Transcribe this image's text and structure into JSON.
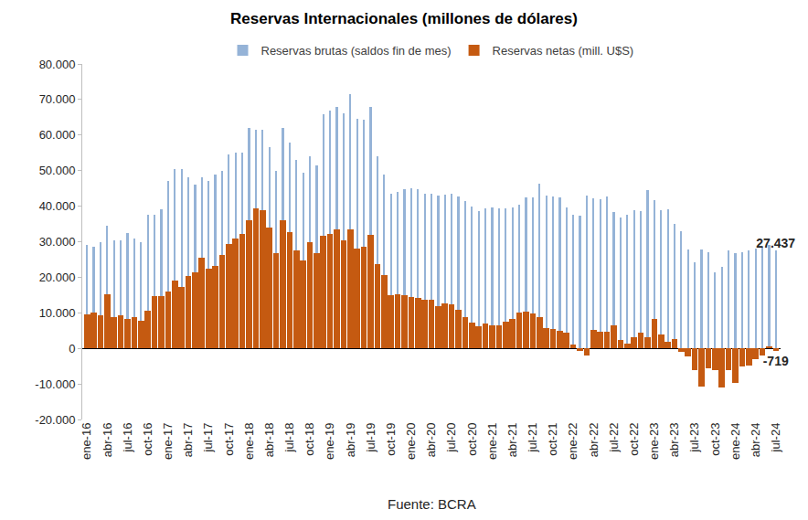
{
  "chart_data": {
    "type": "bar",
    "title": "Reservas Internacionales (millones de dólares)",
    "source": "Fuente: BCRA",
    "categories": [
      "ene-16",
      null,
      null,
      "abr-16",
      null,
      null,
      "jul-16",
      null,
      null,
      "oct-16",
      null,
      null,
      "ene-17",
      null,
      null,
      "abr-17",
      null,
      null,
      "jul-17",
      null,
      null,
      "oct-17",
      null,
      null,
      "ene-18",
      null,
      null,
      "abr-18",
      null,
      null,
      "jul-18",
      null,
      null,
      "oct-18",
      null,
      null,
      "ene-19",
      null,
      null,
      "abr-19",
      null,
      null,
      "jul-19",
      null,
      null,
      "oct-19",
      null,
      null,
      "ene-20",
      null,
      null,
      "abr-20",
      null,
      null,
      "jul-20",
      null,
      null,
      "oct-20",
      null,
      null,
      "ene-21",
      null,
      null,
      "abr-21",
      null,
      null,
      "jul-21",
      null,
      null,
      "oct-21",
      null,
      null,
      "ene-22",
      null,
      null,
      "abr-22",
      null,
      null,
      "jul-22",
      null,
      null,
      "oct-22",
      null,
      null,
      "ene-23",
      null,
      null,
      "abr-23",
      null,
      null,
      "jul-23",
      null,
      null,
      "oct-23",
      null,
      null,
      "ene-24",
      null,
      null,
      "abr-24",
      null,
      null,
      "jul-24"
    ],
    "series": [
      {
        "name": "Reservas brutas (saldos fin de mes)",
        "color": "#95b3d7",
        "values": [
          29000,
          28500,
          30000,
          34500,
          30500,
          30500,
          32500,
          31000,
          30000,
          37500,
          37500,
          39000,
          47000,
          50500,
          50500,
          48000,
          46000,
          48000,
          47000,
          49000,
          50000,
          54500,
          55000,
          55000,
          62000,
          61500,
          61500,
          56500,
          50000,
          62000,
          58000,
          53000,
          49500,
          54000,
          51500,
          65800,
          66800,
          67800,
          66000,
          71500,
          64500,
          64300,
          68000,
          54000,
          48800,
          43500,
          43900,
          44800,
          45000,
          44900,
          43600,
          43500,
          42900,
          43200,
          43400,
          42800,
          41400,
          39800,
          38600,
          39400,
          39600,
          39500,
          39500,
          39600,
          40300,
          42400,
          42400,
          46200,
          42900,
          42800,
          42400,
          39600,
          37600,
          37300,
          43100,
          42100,
          41900,
          42800,
          38400,
          36800,
          37700,
          38800,
          38600,
          44600,
          41600,
          38900,
          39000,
          35100,
          33000,
          27900,
          24100,
          27900,
          27100,
          21400,
          23000,
          27500,
          26800,
          27100,
          27600,
          28200,
          28700,
          29000,
          27437
        ],
        "value_labels": [
          null,
          null,
          null,
          null,
          null,
          null,
          null,
          null,
          null,
          null,
          null,
          null,
          null,
          null,
          null,
          null,
          null,
          null,
          null,
          null,
          null,
          null,
          null,
          null,
          null,
          null,
          null,
          null,
          null,
          null,
          null,
          null,
          null,
          null,
          null,
          null,
          null,
          null,
          null,
          null,
          null,
          null,
          null,
          null,
          null,
          null,
          null,
          null,
          null,
          null,
          null,
          null,
          null,
          null,
          null,
          null,
          null,
          null,
          null,
          null,
          null,
          null,
          null,
          null,
          null,
          null,
          null,
          null,
          null,
          null,
          null,
          null,
          null,
          null,
          null,
          null,
          null,
          null,
          null,
          null,
          null,
          null,
          null,
          null,
          null,
          null,
          null,
          null,
          null,
          null,
          null,
          null,
          null,
          null,
          null,
          null,
          null,
          null,
          null,
          null,
          null,
          null,
          "27.437"
        ]
      },
      {
        "name": "Reservas netas (mill. U$S)",
        "color": "#c55a11",
        "values": [
          9500,
          10000,
          9300,
          15300,
          8700,
          9200,
          8200,
          8700,
          7800,
          10500,
          14700,
          14600,
          15900,
          19100,
          17300,
          20300,
          21500,
          25600,
          22500,
          23200,
          26200,
          29400,
          30900,
          32200,
          36000,
          39300,
          38800,
          34000,
          26700,
          36000,
          32700,
          27500,
          24700,
          29800,
          26800,
          31700,
          32200,
          33500,
          30300,
          33500,
          28200,
          28600,
          31900,
          23800,
          20700,
          14900,
          15100,
          15000,
          14500,
          14200,
          13800,
          13600,
          12000,
          12700,
          12500,
          10800,
          8700,
          7300,
          6200,
          7000,
          6500,
          6500,
          7600,
          8400,
          10200,
          10400,
          9800,
          8900,
          5600,
          5400,
          5000,
          4300,
          1100,
          -800,
          -2000,
          5300,
          4600,
          4600,
          6600,
          2300,
          1300,
          3200,
          4500,
          3100,
          8400,
          4000,
          1800,
          2700,
          -1000,
          -2300,
          -6200,
          -10800,
          -5600,
          -6000,
          -10900,
          -6200,
          -9600,
          -5000,
          -4800,
          -3000,
          -1900,
          500,
          -719
        ],
        "value_labels": [
          null,
          null,
          null,
          null,
          null,
          null,
          null,
          null,
          null,
          null,
          null,
          null,
          null,
          null,
          null,
          null,
          null,
          null,
          null,
          null,
          null,
          null,
          null,
          null,
          null,
          null,
          null,
          null,
          null,
          null,
          null,
          null,
          null,
          null,
          null,
          null,
          null,
          null,
          null,
          null,
          null,
          null,
          null,
          null,
          null,
          null,
          null,
          null,
          null,
          null,
          null,
          null,
          null,
          null,
          null,
          null,
          null,
          null,
          null,
          null,
          null,
          null,
          null,
          null,
          null,
          null,
          null,
          null,
          null,
          null,
          null,
          null,
          null,
          null,
          null,
          null,
          null,
          null,
          null,
          null,
          null,
          null,
          null,
          null,
          null,
          null,
          null,
          null,
          null,
          null,
          null,
          null,
          null,
          null,
          null,
          null,
          null,
          null,
          null,
          null,
          null,
          null,
          "-719"
        ]
      }
    ],
    "ylim": [
      -20000,
      80000
    ],
    "yticks": [
      {
        "value": -20000,
        "label": "-20.000"
      },
      {
        "value": -10000,
        "label": "-10.000"
      },
      0,
      {
        "value": 10000,
        "label": "10.000"
      },
      {
        "value": 20000,
        "label": "20.000"
      },
      {
        "value": 30000,
        "label": "30.000"
      },
      {
        "value": 40000,
        "label": "40.000"
      },
      {
        "value": 50000,
        "label": "50.000"
      },
      {
        "value": 60000,
        "label": "60.000"
      },
      {
        "value": 70000,
        "label": "70.000"
      },
      {
        "value": 80000,
        "label": "80.000"
      }
    ],
    "grid": false,
    "legend": "top",
    "data_labels": true
  }
}
